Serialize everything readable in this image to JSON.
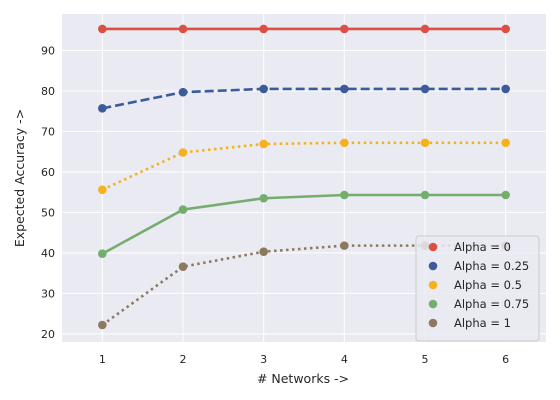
{
  "chart_data": {
    "type": "line",
    "title": "",
    "xlabel": "# Networks ->",
    "ylabel": "Expected Accuracy ->",
    "x": [
      1,
      2,
      3,
      4,
      5,
      6
    ],
    "xlim": [
      0.5,
      6.5
    ],
    "ylim": [
      18,
      99
    ],
    "xticks": [
      1,
      2,
      3,
      4,
      5,
      6
    ],
    "yticks": [
      20,
      30,
      40,
      50,
      60,
      70,
      80,
      90
    ],
    "grid": true,
    "legend_position": "lower-right",
    "series": [
      {
        "name": "Alpha = 0",
        "values": [
          95.3,
          95.3,
          95.3,
          95.3,
          95.3,
          95.3
        ],
        "color": "#dd4f45",
        "line_style": "solid"
      },
      {
        "name": "Alpha = 0.25",
        "values": [
          75.7,
          79.7,
          80.5,
          80.5,
          80.5,
          80.5
        ],
        "color": "#3c5b9a",
        "line_style": "dashed"
      },
      {
        "name": "Alpha = 0.5",
        "values": [
          55.6,
          64.8,
          66.9,
          67.2,
          67.2,
          67.2
        ],
        "color": "#f6b21d",
        "line_style": "dotted"
      },
      {
        "name": "Alpha = 0.75",
        "values": [
          39.8,
          50.7,
          53.5,
          54.3,
          54.3,
          54.3
        ],
        "color": "#74ad6e",
        "line_style": "solid"
      },
      {
        "name": "Alpha = 1",
        "values": [
          22.2,
          36.6,
          40.3,
          41.8,
          41.8,
          41.8
        ],
        "color": "#8c7a60",
        "line_style": "dotted"
      }
    ]
  }
}
